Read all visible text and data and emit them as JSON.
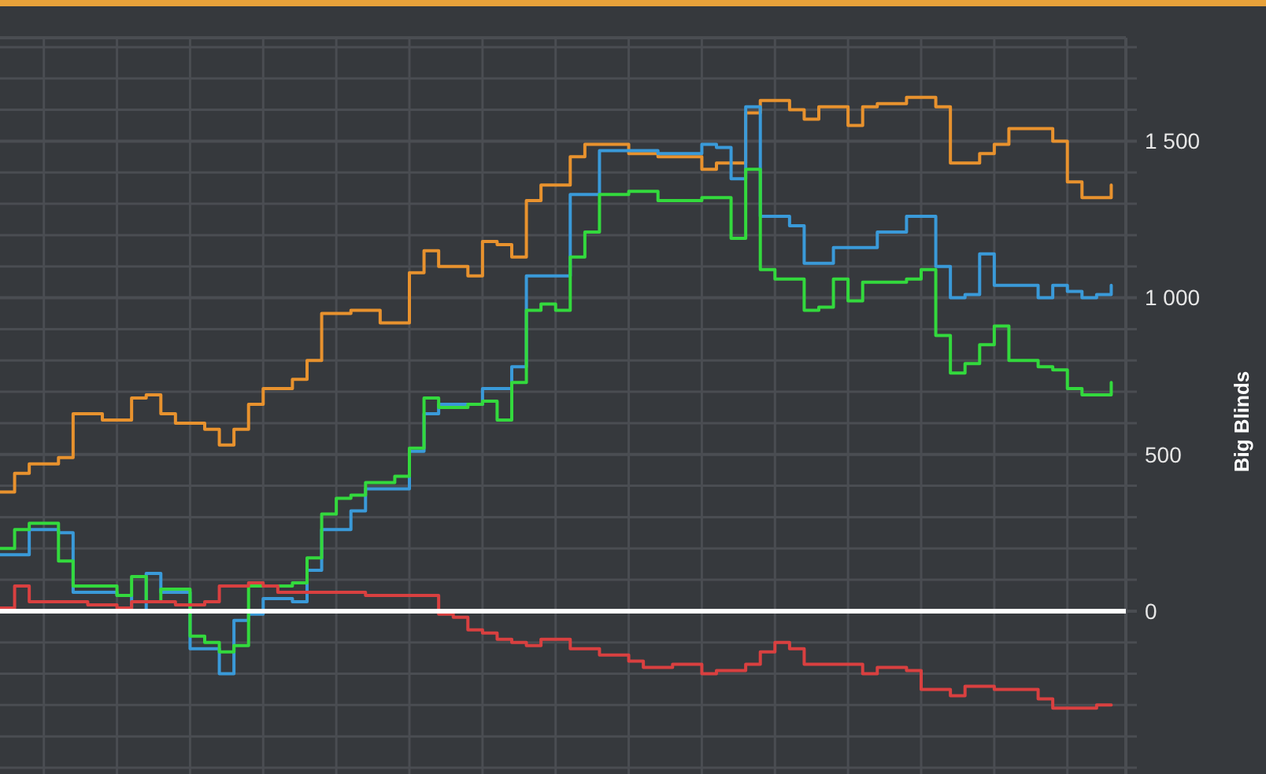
{
  "chart_data": {
    "type": "step",
    "ylabel": "Big Blinds",
    "categories": [
      null,
      null,
      null,
      null,
      null,
      null,
      null,
      null,
      null,
      null,
      null,
      null,
      null,
      null,
      null,
      null,
      null,
      null,
      null,
      null,
      null,
      null,
      null,
      null,
      null,
      null,
      null,
      null,
      null,
      null,
      null,
      null,
      null,
      null,
      null,
      null,
      null,
      null,
      null,
      null,
      null,
      null,
      null,
      null,
      null,
      null,
      null,
      null,
      null,
      null,
      null,
      null,
      null,
      null,
      null,
      null,
      null,
      null,
      null,
      null,
      null,
      null,
      null,
      null,
      null,
      null,
      null,
      null,
      null,
      null,
      null,
      null,
      null,
      null,
      null,
      null,
      null
    ],
    "ylim": [
      -520,
      1830
    ],
    "yticks": [
      {
        "value": -500,
        "label": null
      },
      {
        "value": -400,
        "label": null
      },
      {
        "value": -300,
        "label": null
      },
      {
        "value": -200,
        "label": null
      },
      {
        "value": -100,
        "label": null
      },
      {
        "value": 0,
        "label": "0"
      },
      {
        "value": 100,
        "label": null
      },
      {
        "value": 200,
        "label": null
      },
      {
        "value": 300,
        "label": null
      },
      {
        "value": 400,
        "label": null
      },
      {
        "value": 500,
        "label": "500"
      },
      {
        "value": 600,
        "label": null
      },
      {
        "value": 700,
        "label": null
      },
      {
        "value": 800,
        "label": null
      },
      {
        "value": 900,
        "label": null
      },
      {
        "value": 1000,
        "label": "1 000"
      },
      {
        "value": 1100,
        "label": null
      },
      {
        "value": 1200,
        "label": null
      },
      {
        "value": 1300,
        "label": null
      },
      {
        "value": 1400,
        "label": null
      },
      {
        "value": 1500,
        "label": "1 500"
      },
      {
        "value": 1600,
        "label": null
      },
      {
        "value": 1700,
        "label": null
      },
      {
        "value": 1800,
        "label": null
      }
    ],
    "tick_labels": "y",
    "grid": true,
    "marker": "none",
    "line_style": "solid",
    "ref_lines": [
      {
        "axis": "y",
        "value": 0,
        "color": "#ffffff"
      }
    ],
    "series": [
      {
        "color": "#e8922e",
        "values": [
          380,
          440,
          470,
          470,
          490,
          630,
          630,
          610,
          610,
          680,
          690,
          630,
          600,
          600,
          580,
          530,
          580,
          660,
          710,
          710,
          740,
          800,
          950,
          950,
          960,
          960,
          920,
          920,
          1080,
          1150,
          1100,
          1100,
          1070,
          1180,
          1170,
          1130,
          1310,
          1360,
          1360,
          1450,
          1490,
          1490,
          1490,
          1460,
          1460,
          1450,
          1450,
          1450,
          1410,
          1430,
          1430,
          1590,
          1630,
          1630,
          1600,
          1570,
          1610,
          1610,
          1550,
          1610,
          1620,
          1620,
          1640,
          1640,
          1610,
          1430,
          1430,
          1460,
          1490,
          1540,
          1540,
          1540,
          1500,
          1370,
          1320,
          1320,
          1360
        ]
      },
      {
        "color": "#3a9ad9",
        "values": [
          180,
          180,
          260,
          260,
          250,
          60,
          60,
          60,
          50,
          0,
          120,
          60,
          60,
          -120,
          -120,
          -200,
          -30,
          -10,
          40,
          40,
          30,
          130,
          260,
          260,
          320,
          390,
          390,
          390,
          510,
          630,
          660,
          660,
          660,
          710,
          710,
          780,
          1070,
          1070,
          1070,
          1330,
          1330,
          1470,
          1470,
          1470,
          1470,
          1460,
          1460,
          1460,
          1490,
          1480,
          1380,
          1610,
          1260,
          1260,
          1230,
          1110,
          1110,
          1160,
          1160,
          1160,
          1210,
          1210,
          1260,
          1260,
          1100,
          1000,
          1010,
          1140,
          1040,
          1040,
          1040,
          1000,
          1040,
          1020,
          1000,
          1010,
          1040
        ]
      },
      {
        "color": "#33d93d",
        "values": [
          200,
          260,
          280,
          280,
          160,
          80,
          80,
          80,
          50,
          110,
          30,
          70,
          70,
          -80,
          -100,
          -130,
          -110,
          80,
          80,
          80,
          90,
          170,
          310,
          360,
          370,
          410,
          410,
          430,
          520,
          680,
          650,
          650,
          660,
          670,
          610,
          730,
          960,
          980,
          960,
          1130,
          1210,
          1330,
          1330,
          1340,
          1340,
          1310,
          1310,
          1310,
          1320,
          1320,
          1190,
          1410,
          1090,
          1060,
          1060,
          960,
          970,
          1060,
          990,
          1050,
          1050,
          1050,
          1060,
          1090,
          880,
          760,
          790,
          850,
          910,
          800,
          800,
          780,
          770,
          710,
          690,
          690,
          730
        ]
      },
      {
        "color": "#d94040",
        "values": [
          10,
          80,
          30,
          30,
          30,
          30,
          20,
          20,
          10,
          30,
          30,
          30,
          20,
          20,
          30,
          80,
          80,
          90,
          80,
          60,
          60,
          60,
          60,
          60,
          60,
          50,
          50,
          50,
          50,
          50,
          -10,
          -20,
          -60,
          -70,
          -90,
          -100,
          -110,
          -90,
          -90,
          -120,
          -120,
          -140,
          -140,
          -160,
          -180,
          -180,
          -170,
          -170,
          -200,
          -190,
          -190,
          -170,
          -130,
          -100,
          -120,
          -170,
          -170,
          -170,
          -170,
          -200,
          -180,
          -180,
          -190,
          -250,
          -250,
          -270,
          -240,
          -240,
          -250,
          -250,
          -250,
          -280,
          -310,
          -310,
          -310,
          -300,
          -300
        ]
      }
    ]
  }
}
